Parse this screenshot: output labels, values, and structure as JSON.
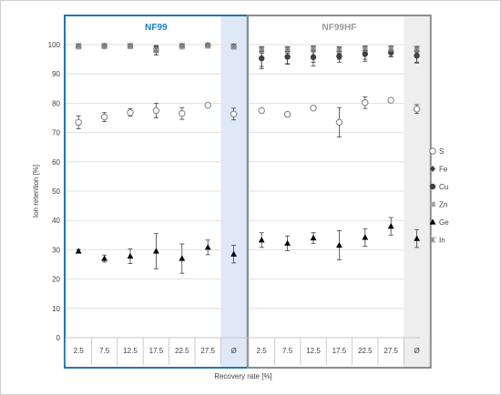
{
  "chart_data": {
    "type": "scatter",
    "ylabel": "Ion retention [%]",
    "xlabel": "Recovery rate [%]",
    "ylim": [
      0,
      100
    ],
    "yticks": [
      0,
      10,
      20,
      30,
      40,
      50,
      60,
      70,
      80,
      90,
      100
    ],
    "grid": "horizontal",
    "legend_position": "right",
    "panels": [
      {
        "title": "NF99",
        "title_color": "#1f7fc0",
        "border_color": "#1f77b4",
        "categories": [
          "2.5",
          "7.5",
          "12.5",
          "17.5",
          "22.5",
          "27.5",
          "Ø"
        ],
        "series": {
          "S": {
            "values": [
              73.5,
              75.3,
              76.8,
              77.5,
              76.5,
              79.3,
              76.3
            ],
            "errors": [
              2.2,
              1.5,
              1.3,
              2.5,
              2.0,
              0.8,
              2.0
            ]
          },
          "Fe": {
            "values": [
              99.5,
              99.5,
              99.5,
              98.0,
              99.5,
              99.7,
              99.3
            ],
            "errors": [
              0.4,
              0.4,
              0.4,
              1.5,
              0.4,
              0.3,
              0.5
            ]
          },
          "Cu": {
            "values": [
              99.4,
              99.5,
              99.5,
              98.5,
              99.5,
              99.7,
              99.4
            ],
            "errors": [
              0.4,
              0.4,
              0.4,
              1.2,
              0.4,
              0.3,
              0.5
            ]
          },
          "Zn": {
            "values": [
              99.2,
              99.3,
              99.3,
              98.0,
              99.2,
              99.5,
              99.1
            ],
            "errors": [
              0.4,
              0.4,
              0.4,
              1.5,
              0.4,
              0.3,
              0.5
            ]
          },
          "Ge": {
            "values": [
              29.5,
              27.0,
              27.8,
              29.5,
              27.0,
              30.8,
              28.5
            ],
            "errors": [
              0.6,
              1.2,
              2.5,
              6.0,
              5.0,
              2.5,
              3.0
            ]
          },
          "In": {
            "values": [
              99.6,
              99.6,
              99.6,
              98.5,
              99.6,
              99.8,
              99.5
            ],
            "errors": [
              0.3,
              0.3,
              0.3,
              1.0,
              0.3,
              0.2,
              0.4
            ]
          }
        }
      },
      {
        "title": "NF99HF",
        "title_color": "#9c9c9c",
        "border_color": "#8c8c8c",
        "categories": [
          "2.5",
          "7.5",
          "12.5",
          "17.5",
          "22.5",
          "27.5",
          "Ø"
        ],
        "series": {
          "S": {
            "values": [
              77.5,
              76.2,
              78.3,
              73.5,
              80.2,
              81.0,
              78.0
            ],
            "errors": [
              0.6,
              0.6,
              0.5,
              5.0,
              2.0,
              0.8,
              1.5
            ]
          },
          "Fe": {
            "values": [
              95.5,
              96.0,
              96.0,
              96.5,
              97.0,
              97.5,
              96.5
            ],
            "errors": [
              3.0,
              2.5,
              2.0,
              1.5,
              2.0,
              1.5,
              2.5
            ]
          },
          "Cu": {
            "values": [
              95.3,
              95.8,
              95.7,
              96.0,
              96.8,
              97.3,
              96.2
            ],
            "errors": [
              3.5,
              2.5,
              3.0,
              2.0,
              2.5,
              1.5,
              2.5
            ]
          },
          "Zn": {
            "values": [
              98.0,
              98.0,
              98.5,
              98.0,
              98.5,
              98.5,
              98.3
            ],
            "errors": [
              1.0,
              1.0,
              1.0,
              1.0,
              1.0,
              1.0,
              1.0
            ]
          },
          "Ge": {
            "values": [
              33.3,
              32.2,
              34.0,
              31.5,
              34.2,
              38.0,
              33.8
            ],
            "errors": [
              2.5,
              2.5,
              1.8,
              5.0,
              3.0,
              3.0,
              3.0
            ]
          },
          "In": {
            "values": [
              98.5,
              98.5,
              98.7,
              98.5,
              98.7,
              98.7,
              98.6
            ],
            "errors": [
              0.8,
              0.8,
              0.8,
              0.8,
              0.8,
              0.8,
              0.8
            ]
          }
        }
      }
    ],
    "highlight_fills": {
      "NF99": "#dfe8f7",
      "NF99HF": "#eeeeee"
    },
    "legend": [
      {
        "name": "S",
        "marker": "circle-open"
      },
      {
        "name": "Fe",
        "marker": "diamond"
      },
      {
        "name": "Cu",
        "marker": "circle-filled"
      },
      {
        "name": "Zn",
        "marker": "square-gray"
      },
      {
        "name": "Ge",
        "marker": "triangle"
      },
      {
        "name": "In",
        "marker": "star"
      }
    ]
  }
}
